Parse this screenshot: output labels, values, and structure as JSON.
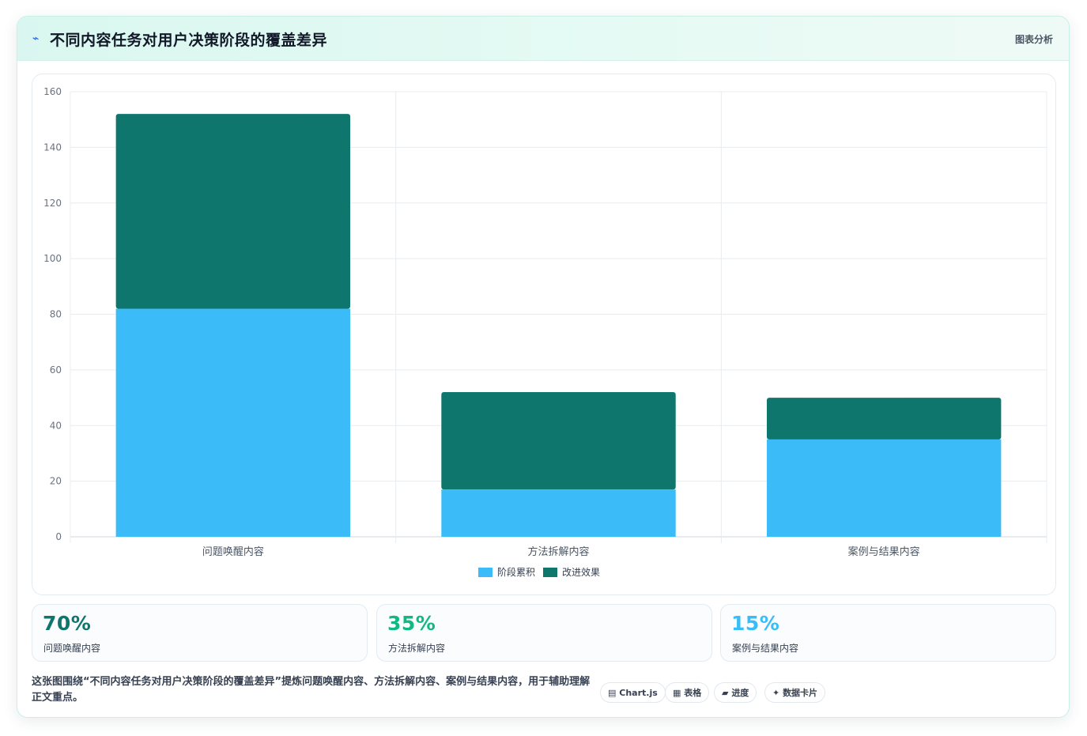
{
  "header": {
    "icon": "lightning-icon",
    "title": "不同内容任务对用户决策阶段的覆盖差异",
    "tag": "图表分析"
  },
  "chart_data": {
    "type": "bar",
    "stacked": true,
    "categories": [
      "问题唤醒内容",
      "方法拆解内容",
      "案例与结果内容"
    ],
    "series": [
      {
        "name": "阶段累积",
        "color": "#3bbcf8",
        "values": [
          82,
          17,
          35
        ]
      },
      {
        "name": "改进效果",
        "color": "#0f766e",
        "values": [
          70,
          35,
          15
        ]
      }
    ],
    "ylim": [
      0,
      160
    ],
    "yticks": [
      0,
      20,
      40,
      60,
      80,
      100,
      120,
      140,
      160
    ],
    "grid": true,
    "legend": "bottom"
  },
  "stats": [
    {
      "value": "70%",
      "label": "问题唤醒内容",
      "color": "#0f766e"
    },
    {
      "value": "35%",
      "label": "方法拆解内容",
      "color": "#10b981"
    },
    {
      "value": "15%",
      "label": "案例与结果内容",
      "color": "#38bdf8"
    }
  ],
  "note": "这张图围绕“不同内容任务对用户决策阶段的覆盖差异”提炼问题唤醒内容、方法拆解内容、案例与结果内容，用于辅助理解正文重点。",
  "tags": [
    {
      "icon": "chart-icon",
      "glyph": "▤",
      "label": "Chart.js"
    },
    {
      "icon": "table-icon",
      "glyph": "▦",
      "label": "表格"
    },
    {
      "icon": "progress-icon",
      "glyph": "▰",
      "label": "进度"
    },
    {
      "icon": "card-icon",
      "glyph": "✦",
      "label": "数据卡片"
    }
  ]
}
